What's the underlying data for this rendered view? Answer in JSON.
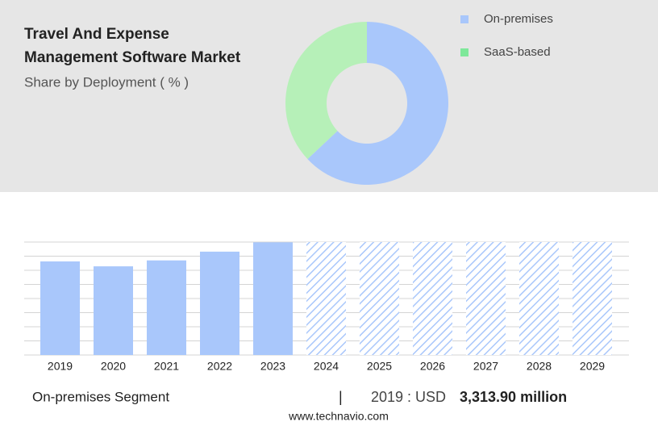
{
  "chart_data": [
    {
      "type": "pie",
      "title_lines": [
        "Travel And Expense",
        "Management Software Market"
      ],
      "subtitle": "Share by Deployment ( % )",
      "categories": [
        "On-premises",
        "SaaS-based"
      ],
      "values": [
        63,
        37
      ],
      "colors": [
        "#a9c7fb",
        "#b6f0b8"
      ],
      "legend_colors": [
        "#a9c7fb",
        "#7ee89a"
      ],
      "donut": true
    },
    {
      "type": "bar",
      "categories": [
        "2019",
        "2020",
        "2021",
        "2022",
        "2023",
        "2024",
        "2025",
        "2026",
        "2027",
        "2028",
        "2029"
      ],
      "values": [
        3313.9,
        3140,
        3350,
        3660,
        3990,
        null,
        null,
        null,
        null,
        null,
        null
      ],
      "color": "#a9c7fb",
      "ylim": [
        0,
        4000
      ],
      "yticks": [
        0,
        500,
        1000,
        1500,
        2000,
        2500,
        3000,
        3500,
        4000
      ],
      "grid": true
    }
  ],
  "footer": {
    "segment": "On-premises Segment",
    "separator": "|",
    "year_currency": "2019 : USD",
    "amount": "3,313.90 million",
    "site": "www.technavio.com"
  }
}
